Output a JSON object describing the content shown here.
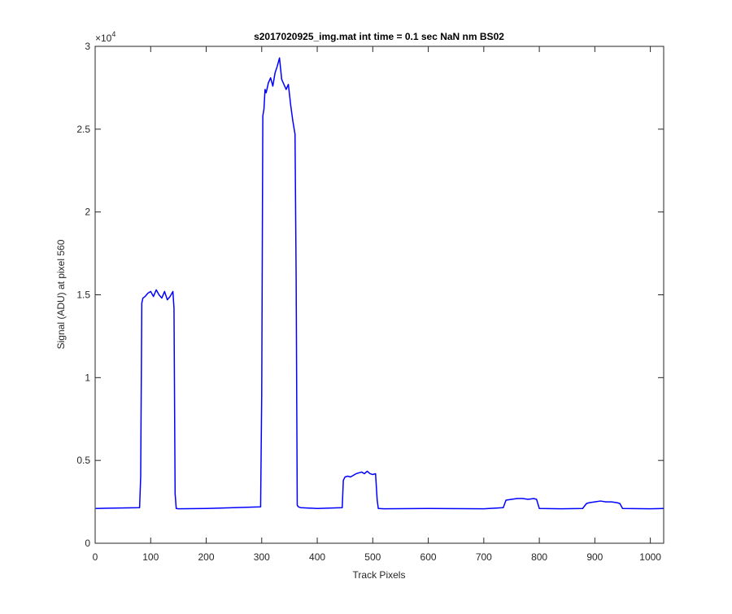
{
  "chart_data": {
    "type": "line",
    "title": "s2017020925_img.mat int time = 0.1 sec  NaN nm BS02",
    "xlabel": "Track Pixels",
    "ylabel": "Signal (ADU) at pixel 560",
    "xlim": [
      0,
      1024
    ],
    "ylim": [
      0,
      30000
    ],
    "y_multiplier_label": "×10",
    "y_multiplier_exponent": "4",
    "xticks": [
      0,
      100,
      200,
      300,
      400,
      500,
      600,
      700,
      800,
      900,
      1000
    ],
    "xtick_labels": [
      "0",
      "100",
      "200",
      "300",
      "400",
      "500",
      "600",
      "700",
      "800",
      "900",
      "1000"
    ],
    "yticks": [
      0,
      5000,
      10000,
      15000,
      20000,
      25000,
      30000
    ],
    "ytick_labels": [
      "0",
      "0.5",
      "1",
      "1.5",
      "2",
      "2.5",
      "3"
    ],
    "grid": false,
    "line_color": "#0000ff",
    "series": [
      {
        "x": [
          1,
          80,
          82,
          84,
          86,
          90,
          95,
          100,
          105,
          110,
          115,
          120,
          125,
          130,
          135,
          140,
          142,
          144,
          146,
          150,
          200,
          250,
          298,
          300,
          302,
          304,
          306,
          308,
          312,
          316,
          320,
          324,
          328,
          332,
          336,
          340,
          344,
          348,
          352,
          356,
          360,
          362,
          364,
          366,
          370,
          400,
          445,
          447,
          450,
          455,
          460,
          465,
          470,
          475,
          480,
          485,
          490,
          495,
          500,
          505,
          508,
          510,
          520,
          600,
          700,
          735,
          740,
          750,
          760,
          770,
          780,
          790,
          795,
          800,
          840,
          878,
          885,
          890,
          900,
          910,
          920,
          930,
          940,
          945,
          950,
          1000,
          1024
        ],
        "y": [
          2100,
          2150,
          4000,
          14500,
          14800,
          14900,
          15100,
          15200,
          14900,
          15300,
          15000,
          14800,
          15200,
          14700,
          14900,
          15200,
          14200,
          3000,
          2100,
          2080,
          2100,
          2150,
          2200,
          9000,
          25800,
          26200,
          27400,
          27200,
          27800,
          28100,
          27600,
          28400,
          28800,
          29300,
          28000,
          27700,
          27400,
          27700,
          26500,
          25500,
          24700,
          16000,
          2300,
          2200,
          2150,
          2100,
          2150,
          3800,
          4000,
          4050,
          4000,
          4100,
          4200,
          4250,
          4300,
          4200,
          4350,
          4200,
          4150,
          4200,
          2600,
          2100,
          2080,
          2100,
          2080,
          2150,
          2600,
          2650,
          2700,
          2700,
          2650,
          2700,
          2650,
          2100,
          2080,
          2100,
          2400,
          2450,
          2500,
          2550,
          2500,
          2500,
          2450,
          2400,
          2100,
          2080,
          2100
        ]
      }
    ]
  }
}
